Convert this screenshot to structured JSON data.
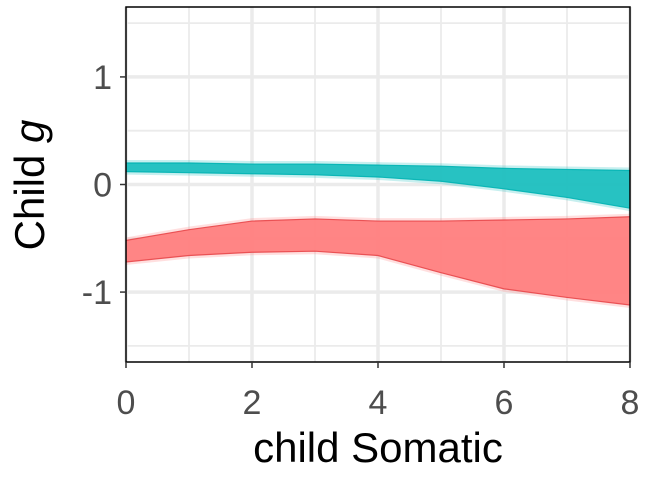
{
  "chart_data": {
    "type": "area",
    "xlabel": "child Somatic",
    "ylabel": {
      "prefix": "Child ",
      "italic": "g"
    },
    "xlim": [
      0,
      8
    ],
    "ylim": [
      -1.65,
      1.65
    ],
    "x_ticks": [
      0,
      2,
      4,
      6,
      8
    ],
    "x_tick_labels": [
      "0",
      "2",
      "4",
      "6",
      "8"
    ],
    "y_ticks": [
      -1,
      0,
      1
    ],
    "y_tick_labels": [
      "-1",
      "0",
      "1"
    ],
    "grid": true,
    "x": [
      0,
      1,
      2,
      3,
      4,
      5,
      6,
      7,
      8
    ],
    "series": [
      {
        "color": "#00B2B2",
        "fill": "#1FBFBF",
        "upper": [
          0.2,
          0.2,
          0.19,
          0.19,
          0.18,
          0.17,
          0.15,
          0.14,
          0.13
        ],
        "lower": [
          0.12,
          0.11,
          0.1,
          0.09,
          0.07,
          0.03,
          -0.04,
          -0.12,
          -0.22
        ]
      },
      {
        "color": "#E8474A",
        "fill": "#FF7F7F",
        "upper": [
          -0.52,
          -0.42,
          -0.34,
          -0.32,
          -0.34,
          -0.34,
          -0.33,
          -0.32,
          -0.3
        ],
        "lower": [
          -0.72,
          -0.66,
          -0.63,
          -0.62,
          -0.66,
          -0.82,
          -0.97,
          -1.05,
          -1.12
        ]
      }
    ]
  }
}
